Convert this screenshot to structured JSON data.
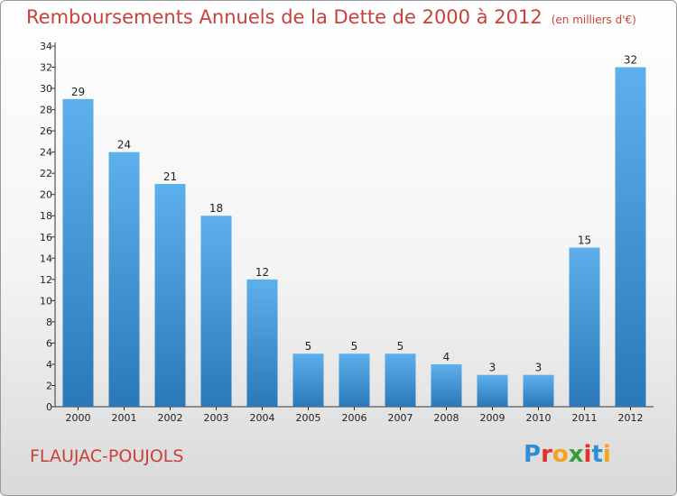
{
  "title": "Remboursements Annuels de la Dette de 2000 à 2012",
  "subtitle": "(en milliers d'€)",
  "commune": "FLAUJAC-POUJOLS",
  "logo": {
    "letters": [
      "P",
      "r",
      "o",
      "x",
      "i",
      "t",
      "i"
    ],
    "colors": [
      "#2f8fd6",
      "#e2312a",
      "#f5a31a",
      "#3b9c3a",
      "#e2312a",
      "#2f8fd6",
      "#f5a31a"
    ]
  },
  "colors": {
    "bar_light": "#5eb0ec",
    "bar_dark": "#2a78b8",
    "title": "#c8413a"
  },
  "chart_data": {
    "type": "bar",
    "categories": [
      "2000",
      "2001",
      "2002",
      "2003",
      "2004",
      "2005",
      "2006",
      "2007",
      "2008",
      "2009",
      "2010",
      "2011",
      "2012"
    ],
    "values": [
      29,
      24,
      21,
      18,
      12,
      5,
      5,
      5,
      4,
      3,
      3,
      15,
      32
    ],
    "ylim": [
      0,
      34
    ],
    "yticks": [
      0,
      2,
      4,
      6,
      8,
      10,
      12,
      14,
      16,
      18,
      20,
      22,
      24,
      26,
      28,
      30,
      32,
      34
    ],
    "grid": false
  }
}
